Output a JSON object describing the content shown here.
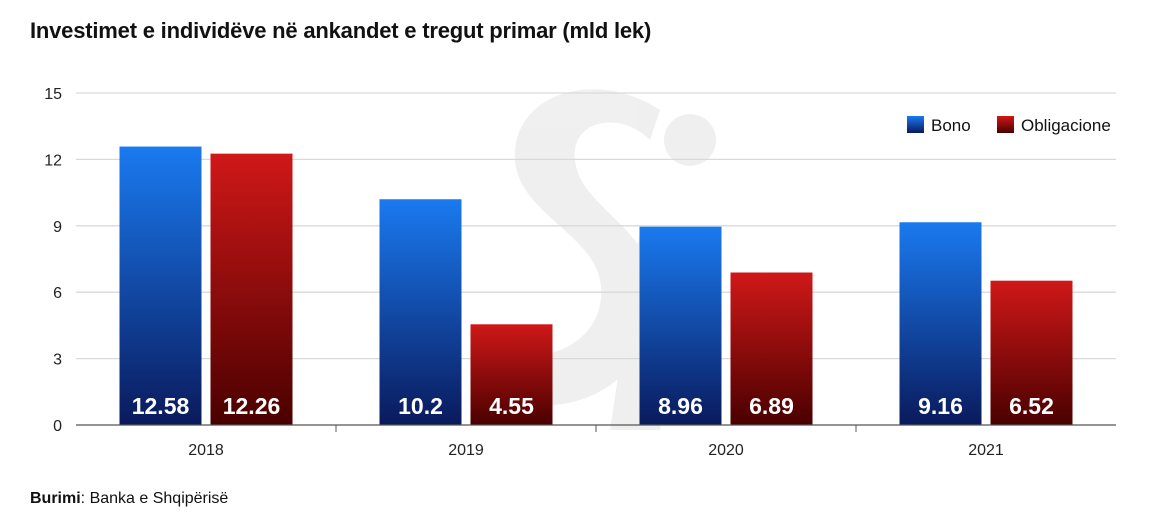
{
  "title": "Investimet e individëve në ankandet e tregut primar (mld lek)",
  "source": {
    "label": "Burimi",
    "separator": ": ",
    "text": "Banka e Shqipërisë"
  },
  "colors": {
    "blue_top": "#1a7af0",
    "blue_bottom": "#0a1a5c",
    "red_top": "#d01818",
    "red_bottom": "#4a0000",
    "grid": "#d9d9d9",
    "axis": "#555555"
  },
  "chart_data": {
    "type": "bar",
    "title": "Investimet e individëve në ankandet e tregut primar (mld lek)",
    "categories": [
      "2018",
      "2019",
      "2020",
      "2021"
    ],
    "series": [
      {
        "name": "Bono",
        "values": [
          12.58,
          10.2,
          8.96,
          9.16
        ],
        "labels": [
          "12.58",
          "10.2",
          "8.96",
          "9.16"
        ]
      },
      {
        "name": "Obligacione",
        "values": [
          12.26,
          4.55,
          6.89,
          6.52
        ],
        "labels": [
          "12.26",
          "4.55",
          "6.89",
          "6.52"
        ]
      }
    ],
    "ylim": [
      0,
      15
    ],
    "yticks": [
      0,
      3,
      6,
      9,
      12,
      15
    ],
    "grid": true,
    "legend": "top-right"
  }
}
